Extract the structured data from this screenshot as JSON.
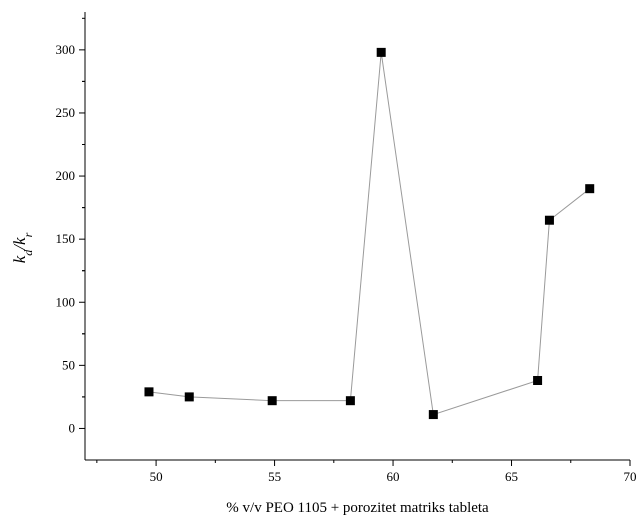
{
  "chart_data": {
    "type": "line",
    "title": "",
    "xlabel": "% v/v PEO 1105 + porozitet matriks tableta",
    "ylabel": {
      "k1": "k",
      "sub1": "d",
      "sep": "/",
      "k2": "k",
      "sub2": "r"
    },
    "xlim": [
      47,
      70
    ],
    "ylim": [
      -25,
      330
    ],
    "x_ticks": [
      50,
      55,
      60,
      65,
      70
    ],
    "x_tick_labels": [
      "50",
      "55",
      "60",
      "65",
      "70"
    ],
    "y_ticks": [
      0,
      50,
      100,
      150,
      200,
      250,
      300
    ],
    "y_tick_labels": [
      "0",
      "50",
      "100",
      "150",
      "200",
      "250",
      "300"
    ],
    "grid": false,
    "series": [
      {
        "x": [
          49.7,
          51.4,
          54.9,
          58.2,
          59.5,
          61.7,
          66.1,
          66.6,
          68.3
        ],
        "y": [
          29,
          25,
          22,
          22,
          298,
          11,
          38,
          165,
          190
        ],
        "marker": "square",
        "marker_color": "#000000",
        "line_color": "#9a9a9a"
      }
    ]
  }
}
